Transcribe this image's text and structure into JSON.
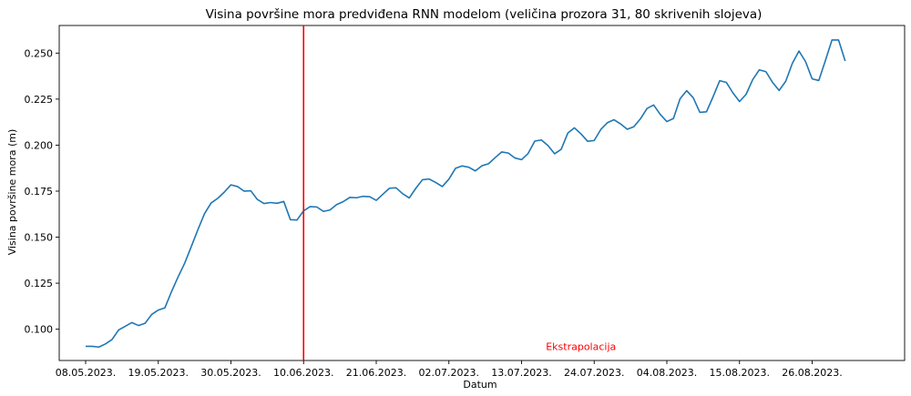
{
  "chart_data": {
    "type": "line",
    "title": "Visina površine mora predviđena RNN modelom (veličina prozora 31, 80 skrivenih slojeva)",
    "xlabel": "Datum",
    "ylabel": "Visina površine mora (m)",
    "x_start": "2023-05-08",
    "x_end": "2023-09-05",
    "xlim": [
      "2023-05-04",
      "2023-09-09"
    ],
    "ylim": [
      0.083,
      0.265
    ],
    "xtick_dates": [
      "2023-05-08",
      "2023-05-19",
      "2023-05-30",
      "2023-06-10",
      "2023-06-21",
      "2023-07-02",
      "2023-07-13",
      "2023-07-24",
      "2023-08-04",
      "2023-08-15",
      "2023-08-26"
    ],
    "xtick_labels": [
      "08.05.2023.",
      "19.05.2023.",
      "30.05.2023.",
      "10.06.2023.",
      "21.06.2023.",
      "02.07.2023.",
      "13.07.2023.",
      "24.07.2023.",
      "04.08.2023.",
      "15.08.2023.",
      "26.08.2023."
    ],
    "ytick_values": [
      0.1,
      0.125,
      0.15,
      0.175,
      0.2,
      0.225,
      0.25
    ],
    "ytick_labels": [
      "0.100",
      "0.125",
      "0.150",
      "0.175",
      "0.200",
      "0.225",
      "0.250"
    ],
    "series": [
      {
        "color": "#1f77b4",
        "values": [
          0.0907,
          0.0907,
          0.0903,
          0.092,
          0.0944,
          0.0996,
          0.1016,
          0.1036,
          0.102,
          0.1032,
          0.108,
          0.1104,
          0.1116,
          0.1204,
          0.1284,
          0.1359,
          0.1449,
          0.1541,
          0.1628,
          0.1686,
          0.1711,
          0.1745,
          0.1784,
          0.1775,
          0.175,
          0.1752,
          0.1705,
          0.1683,
          0.1688,
          0.1684,
          0.1694,
          0.1595,
          0.1593,
          0.1643,
          0.1666,
          0.1664,
          0.164,
          0.1648,
          0.1677,
          0.1693,
          0.1716,
          0.1714,
          0.1722,
          0.172,
          0.17,
          0.1733,
          0.1766,
          0.1768,
          0.1736,
          0.1713,
          0.1766,
          0.1812,
          0.1816,
          0.1797,
          0.1775,
          0.1815,
          0.1874,
          0.1887,
          0.188,
          0.186,
          0.1888,
          0.1899,
          0.1932,
          0.1963,
          0.1957,
          0.193,
          0.1921,
          0.1955,
          0.2022,
          0.2028,
          0.1998,
          0.1953,
          0.1977,
          0.2065,
          0.2094,
          0.2061,
          0.2021,
          0.2025,
          0.2085,
          0.2122,
          0.2138,
          0.2115,
          0.2086,
          0.21,
          0.2143,
          0.2199,
          0.2218,
          0.2167,
          0.2128,
          0.2145,
          0.2252,
          0.2296,
          0.2257,
          0.2178,
          0.2181,
          0.2263,
          0.235,
          0.2341,
          0.2284,
          0.2237,
          0.2276,
          0.2356,
          0.2409,
          0.2399,
          0.2341,
          0.2297,
          0.2347,
          0.2444,
          0.2511,
          0.2454,
          0.236,
          0.2351,
          0.2459,
          0.2571,
          0.2571,
          0.2457
        ]
      }
    ],
    "vline": {
      "date": "2023-06-10",
      "color": "#ff0000"
    },
    "annotation": {
      "text": "Ekstrapolacija",
      "date": "2023-07-22",
      "y": 0.0906,
      "color": "#ff0000"
    },
    "grid": false
  }
}
